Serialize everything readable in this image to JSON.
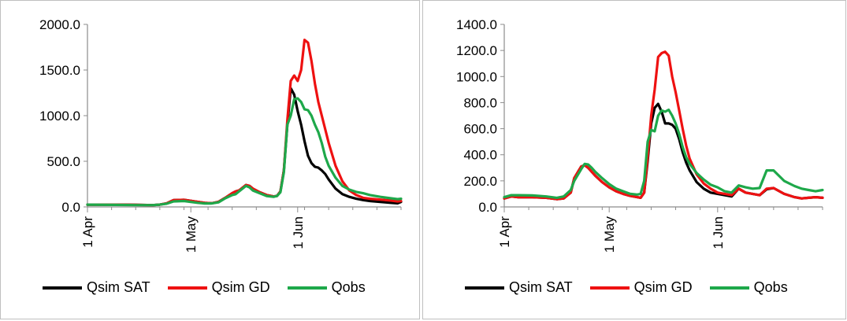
{
  "colors": {
    "Qsim SAT": "#000000",
    "Qsim GD": "#ee1111",
    "Qobs": "#1ea84a",
    "axis": "#8c8c8c"
  },
  "chart_data": [
    {
      "type": "line",
      "title": "",
      "xlabel": "",
      "ylabel": "",
      "xlim": [
        0,
        91
      ],
      "ylim": [
        0,
        2000
      ],
      "x_ticks": [
        {
          "day": 0,
          "label": "1 Apr"
        },
        {
          "day": 30,
          "label": "1 May"
        },
        {
          "day": 61,
          "label": "1 Jun"
        }
      ],
      "y_ticks": [
        "0.0",
        "500.0",
        "1000.0",
        "1500.0",
        "2000.0"
      ],
      "y_tick_values": [
        0,
        500,
        1000,
        1500,
        2000
      ],
      "legend": "bottom",
      "series": [
        {
          "name": "Qsim SAT",
          "color": "#000000",
          "x": [
            0,
            8,
            14,
            19,
            21,
            23,
            25,
            28,
            32,
            34,
            36,
            38,
            40,
            42,
            43,
            44,
            45,
            46,
            47,
            48,
            50,
            52,
            54,
            55,
            56,
            57,
            58,
            59,
            60,
            61,
            62,
            63,
            64,
            65,
            66,
            67,
            68,
            69,
            70,
            72,
            74,
            76,
            78,
            80,
            82,
            85,
            88,
            90,
            91
          ],
          "y": [
            25,
            25,
            22,
            20,
            25,
            40,
            75,
            78,
            55,
            45,
            40,
            55,
            100,
            150,
            170,
            180,
            210,
            240,
            230,
            200,
            160,
            130,
            115,
            120,
            170,
            400,
            900,
            1300,
            1230,
            1050,
            900,
            720,
            560,
            480,
            440,
            430,
            400,
            360,
            300,
            200,
            140,
            110,
            90,
            75,
            65,
            55,
            45,
            40,
            55
          ]
        },
        {
          "name": "Qsim GD",
          "color": "#ee1111",
          "x": [
            0,
            8,
            14,
            19,
            21,
            23,
            25,
            28,
            32,
            34,
            36,
            38,
            40,
            42,
            43,
            44,
            45,
            46,
            47,
            48,
            50,
            52,
            54,
            55,
            56,
            57,
            58,
            59,
            60,
            61,
            62,
            63,
            64,
            65,
            66,
            67,
            68,
            69,
            70,
            72,
            74,
            76,
            78,
            80,
            82,
            85,
            88,
            90,
            91
          ],
          "y": [
            25,
            25,
            22,
            20,
            25,
            40,
            75,
            78,
            55,
            45,
            40,
            55,
            100,
            150,
            170,
            180,
            210,
            240,
            230,
            200,
            160,
            130,
            115,
            120,
            170,
            400,
            950,
            1380,
            1440,
            1380,
            1500,
            1830,
            1800,
            1600,
            1350,
            1150,
            1000,
            850,
            700,
            450,
            280,
            180,
            130,
            100,
            90,
            80,
            70,
            60,
            65
          ]
        },
        {
          "name": "Qobs",
          "color": "#1ea84a",
          "x": [
            0,
            8,
            14,
            19,
            21,
            23,
            25,
            28,
            32,
            34,
            36,
            38,
            40,
            42,
            43,
            44,
            45,
            46,
            47,
            48,
            50,
            52,
            54,
            55,
            56,
            57,
            58,
            59,
            60,
            61,
            62,
            63,
            64,
            65,
            66,
            67,
            68,
            69,
            70,
            72,
            74,
            76,
            78,
            80,
            82,
            85,
            88,
            90,
            91
          ],
          "y": [
            25,
            22,
            20,
            20,
            25,
            35,
            60,
            65,
            45,
            38,
            38,
            50,
            95,
            130,
            140,
            170,
            200,
            230,
            215,
            180,
            150,
            120,
            110,
            120,
            160,
            380,
            900,
            1000,
            1180,
            1190,
            1150,
            1070,
            1060,
            1000,
            900,
            820,
            700,
            550,
            450,
            320,
            230,
            190,
            165,
            150,
            130,
            110,
            95,
            85,
            90
          ]
        }
      ]
    },
    {
      "type": "line",
      "title": "",
      "xlabel": "",
      "ylabel": "",
      "xlim": [
        0,
        91
      ],
      "ylim": [
        0,
        1400
      ],
      "x_ticks": [
        {
          "day": 0,
          "label": "1 Apr"
        },
        {
          "day": 30,
          "label": "1 May"
        },
        {
          "day": 61,
          "label": "1 Jun"
        }
      ],
      "y_ticks": [
        "0.0",
        "200.0",
        "400.0",
        "600.0",
        "800.0",
        "1000.0",
        "1200.0",
        "1400.0"
      ],
      "y_tick_values": [
        0,
        200,
        400,
        600,
        800,
        1000,
        1200,
        1400
      ],
      "legend": "bottom",
      "series": [
        {
          "name": "Qsim SAT",
          "color": "#000000",
          "x": [
            0,
            2,
            4,
            8,
            12,
            15,
            17,
            19,
            20,
            22,
            23,
            24,
            25,
            26,
            28,
            30,
            32,
            34,
            36,
            38,
            39,
            40,
            41,
            42,
            43,
            44,
            45,
            46,
            47,
            48,
            49,
            50,
            51,
            52,
            53,
            55,
            57,
            59,
            61,
            63,
            65,
            67,
            69,
            71,
            73,
            75,
            77,
            80,
            83,
            85,
            87,
            89,
            91
          ],
          "y": [
            65,
            80,
            75,
            75,
            70,
            60,
            65,
            110,
            220,
            310,
            320,
            300,
            270,
            240,
            190,
            150,
            120,
            100,
            85,
            75,
            70,
            110,
            350,
            640,
            760,
            790,
            730,
            640,
            640,
            630,
            600,
            520,
            420,
            340,
            280,
            190,
            140,
            110,
            100,
            90,
            80,
            140,
            110,
            100,
            90,
            135,
            145,
            100,
            75,
            65,
            70,
            75,
            70
          ]
        },
        {
          "name": "Qsim GD",
          "color": "#ee1111",
          "x": [
            0,
            2,
            4,
            8,
            12,
            15,
            17,
            19,
            20,
            22,
            23,
            24,
            25,
            26,
            28,
            30,
            32,
            34,
            36,
            38,
            39,
            40,
            41,
            42,
            43,
            44,
            45,
            46,
            47,
            48,
            49,
            50,
            51,
            52,
            53,
            55,
            57,
            59,
            61,
            63,
            65,
            67,
            69,
            71,
            73,
            75,
            77,
            80,
            83,
            85,
            87,
            89,
            91
          ],
          "y": [
            65,
            80,
            75,
            75,
            70,
            60,
            65,
            110,
            220,
            310,
            320,
            300,
            270,
            240,
            190,
            150,
            120,
            100,
            85,
            75,
            70,
            110,
            380,
            700,
            900,
            1150,
            1180,
            1190,
            1160,
            1000,
            880,
            740,
            600,
            470,
            370,
            250,
            180,
            140,
            110,
            100,
            90,
            140,
            110,
            100,
            90,
            140,
            145,
            100,
            75,
            65,
            70,
            75,
            70
          ]
        },
        {
          "name": "Qobs",
          "color": "#1ea84a",
          "x": [
            0,
            2,
            4,
            8,
            12,
            15,
            17,
            19,
            20,
            22,
            23,
            24,
            25,
            26,
            28,
            30,
            32,
            34,
            36,
            38,
            39,
            40,
            41,
            42,
            43,
            44,
            45,
            46,
            47,
            48,
            49,
            50,
            51,
            52,
            53,
            55,
            57,
            59,
            61,
            63,
            65,
            67,
            69,
            71,
            73,
            75,
            77,
            80,
            83,
            85,
            87,
            89,
            91
          ],
          "y": [
            75,
            90,
            90,
            88,
            80,
            70,
            80,
            130,
            200,
            290,
            330,
            325,
            300,
            270,
            220,
            175,
            140,
            120,
            100,
            95,
            100,
            200,
            500,
            590,
            580,
            700,
            740,
            730,
            745,
            700,
            640,
            560,
            460,
            380,
            330,
            260,
            210,
            170,
            150,
            120,
            110,
            165,
            150,
            140,
            145,
            280,
            280,
            200,
            160,
            140,
            130,
            120,
            130
          ]
        }
      ]
    }
  ]
}
